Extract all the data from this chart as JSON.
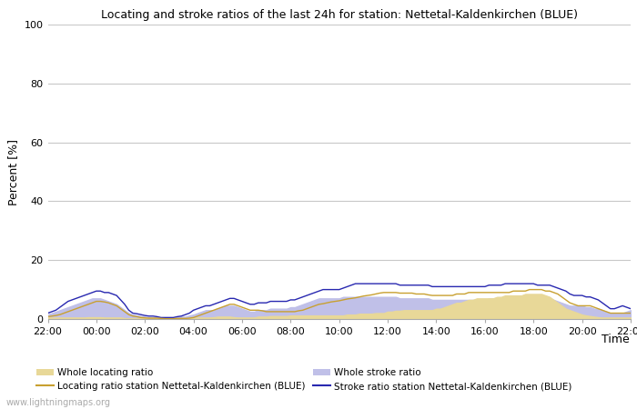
{
  "title": "Locating and stroke ratios of the last 24h for station: Nettetal-Kaldenkirchen (BLUE)",
  "ylabel": "Percent [%]",
  "xlabel": "Time",
  "ylim": [
    0,
    100
  ],
  "yticks": [
    0,
    20,
    40,
    60,
    80,
    100
  ],
  "xtick_labels": [
    "22:00",
    "00:00",
    "02:00",
    "04:00",
    "06:00",
    "08:00",
    "10:00",
    "12:00",
    "14:00",
    "16:00",
    "18:00",
    "20:00",
    "22:00"
  ],
  "watermark": "www.lightningmaps.org",
  "background_color": "#ffffff",
  "plot_bg_color": "#ffffff",
  "grid_color": "#c8c8c8",
  "fill_locating_color": "#e8d898",
  "fill_stroke_color": "#c0c0e8",
  "line_locating_color": "#c8a030",
  "line_stroke_color": "#2828b0",
  "legend_labels": [
    "Whole locating ratio",
    "Locating ratio station Nettetal-Kaldenkirchen (BLUE)",
    "Whole stroke ratio",
    "Stroke ratio station Nettetal-Kaldenkirchen (BLUE)"
  ],
  "n_points": 145,
  "whole_locating": [
    0.5,
    0.5,
    0.5,
    0.5,
    0.5,
    0.5,
    0.5,
    0.5,
    0.5,
    0.5,
    0.6,
    0.6,
    0.6,
    0.6,
    0.5,
    0.5,
    0.5,
    0.5,
    0.5,
    0.3,
    0.2,
    0.2,
    0.2,
    0.2,
    0.2,
    0.2,
    0.2,
    0.2,
    0.1,
    0.1,
    0.1,
    0.1,
    0.2,
    0.2,
    0.2,
    0.3,
    0.4,
    0.5,
    0.5,
    0.5,
    0.5,
    0.6,
    0.8,
    0.8,
    0.8,
    0.8,
    0.6,
    0.5,
    0.5,
    0.5,
    0.5,
    0.5,
    0.8,
    0.8,
    0.8,
    1.0,
    1.0,
    1.0,
    1.0,
    1.0,
    1.2,
    1.2,
    1.2,
    1.2,
    1.2,
    1.2,
    1.2,
    1.2,
    1.2,
    1.2,
    1.2,
    1.2,
    1.2,
    1.2,
    1.5,
    1.5,
    1.5,
    1.8,
    1.8,
    1.8,
    1.8,
    2.0,
    2.0,
    2.0,
    2.5,
    2.5,
    2.8,
    2.8,
    3.0,
    3.0,
    3.0,
    3.0,
    3.0,
    3.0,
    3.0,
    3.0,
    3.5,
    3.5,
    4.0,
    4.5,
    5.0,
    5.5,
    5.5,
    6.0,
    6.5,
    6.5,
    7.0,
    7.0,
    7.0,
    7.0,
    7.0,
    7.5,
    7.5,
    8.0,
    8.0,
    8.0,
    8.0,
    8.0,
    8.5,
    8.5,
    8.5,
    8.5,
    8.5,
    8.0,
    7.5,
    6.5,
    5.5,
    4.5,
    3.5,
    3.0,
    2.5,
    2.0,
    1.5,
    1.2,
    1.0,
    0.8,
    0.6,
    0.5,
    0.5,
    0.5,
    0.5,
    0.5,
    0.5,
    0.5,
    0.5
  ],
  "station_locating": [
    0.8,
    1.0,
    1.2,
    1.5,
    2.0,
    2.5,
    3.0,
    3.5,
    4.0,
    4.5,
    5.0,
    5.5,
    6.0,
    6.0,
    5.8,
    5.5,
    5.0,
    4.5,
    3.5,
    2.5,
    1.5,
    1.0,
    0.8,
    0.5,
    0.4,
    0.3,
    0.3,
    0.3,
    0.2,
    0.1,
    0.1,
    0.1,
    0.2,
    0.2,
    0.2,
    0.3,
    0.5,
    1.0,
    1.5,
    2.0,
    2.5,
    3.0,
    3.5,
    4.0,
    4.5,
    5.0,
    5.0,
    4.5,
    4.0,
    3.5,
    3.0,
    3.0,
    3.0,
    2.8,
    2.5,
    2.5,
    2.5,
    2.5,
    2.5,
    2.5,
    2.5,
    2.5,
    2.8,
    3.0,
    3.5,
    4.0,
    4.5,
    5.0,
    5.2,
    5.5,
    5.8,
    6.0,
    6.2,
    6.5,
    6.8,
    7.0,
    7.2,
    7.5,
    7.8,
    8.0,
    8.2,
    8.5,
    8.8,
    9.0,
    9.0,
    9.0,
    9.0,
    8.8,
    8.8,
    8.8,
    8.8,
    8.5,
    8.5,
    8.5,
    8.2,
    8.0,
    8.0,
    8.0,
    8.0,
    8.0,
    8.0,
    8.5,
    8.5,
    8.5,
    9.0,
    9.0,
    9.0,
    9.0,
    9.0,
    9.0,
    9.0,
    9.0,
    9.0,
    9.0,
    9.0,
    9.5,
    9.5,
    9.5,
    9.5,
    10.0,
    10.0,
    10.0,
    10.0,
    9.5,
    9.5,
    9.0,
    8.5,
    7.5,
    6.5,
    5.5,
    5.0,
    4.5,
    4.5,
    4.5,
    4.5,
    4.0,
    3.5,
    3.0,
    2.5,
    2.0,
    2.0,
    2.0,
    2.0,
    2.0,
    2.0
  ],
  "whole_stroke": [
    1.5,
    2.0,
    2.5,
    3.0,
    3.5,
    4.0,
    4.5,
    5.0,
    5.5,
    6.0,
    6.5,
    7.0,
    7.0,
    7.0,
    6.5,
    6.0,
    5.5,
    5.0,
    4.0,
    3.0,
    2.0,
    1.5,
    1.2,
    1.0,
    0.8,
    0.6,
    0.6,
    0.6,
    0.4,
    0.4,
    0.4,
    0.4,
    0.6,
    0.8,
    0.8,
    1.2,
    1.5,
    2.0,
    2.5,
    3.0,
    3.0,
    3.0,
    3.5,
    4.0,
    4.5,
    4.5,
    4.5,
    4.0,
    3.5,
    3.0,
    2.5,
    2.5,
    3.0,
    3.0,
    3.0,
    3.5,
    3.5,
    3.5,
    3.5,
    3.5,
    4.0,
    4.0,
    4.5,
    5.0,
    5.5,
    6.0,
    6.5,
    7.0,
    7.0,
    7.0,
    7.0,
    7.0,
    7.0,
    7.5,
    7.5,
    7.5,
    7.5,
    7.5,
    7.5,
    7.5,
    7.5,
    7.5,
    7.5,
    7.5,
    7.5,
    7.5,
    7.5,
    7.0,
    7.0,
    7.0,
    7.0,
    7.0,
    7.0,
    7.0,
    7.0,
    6.5,
    6.5,
    6.5,
    6.5,
    6.5,
    6.5,
    6.5,
    6.5,
    6.5,
    6.5,
    6.5,
    6.5,
    6.5,
    6.5,
    7.0,
    7.0,
    7.0,
    7.0,
    7.5,
    7.5,
    7.5,
    7.5,
    7.5,
    7.5,
    7.5,
    7.5,
    7.0,
    7.0,
    7.0,
    7.0,
    6.5,
    6.0,
    5.5,
    5.0,
    4.5,
    4.5,
    4.5,
    4.5,
    4.0,
    4.0,
    3.5,
    3.5,
    3.0,
    2.5,
    2.0,
    2.0,
    2.0,
    2.0,
    2.5,
    3.0
  ],
  "station_stroke": [
    2.0,
    2.5,
    3.0,
    4.0,
    5.0,
    6.0,
    6.5,
    7.0,
    7.5,
    8.0,
    8.5,
    9.0,
    9.5,
    9.5,
    9.0,
    9.0,
    8.5,
    8.0,
    6.5,
    5.0,
    3.0,
    2.0,
    1.8,
    1.5,
    1.2,
    1.0,
    1.0,
    0.8,
    0.5,
    0.5,
    0.5,
    0.5,
    0.8,
    1.0,
    1.5,
    2.0,
    3.0,
    3.5,
    4.0,
    4.5,
    4.5,
    5.0,
    5.5,
    6.0,
    6.5,
    7.0,
    7.0,
    6.5,
    6.0,
    5.5,
    5.0,
    5.0,
    5.5,
    5.5,
    5.5,
    6.0,
    6.0,
    6.0,
    6.0,
    6.0,
    6.5,
    6.5,
    7.0,
    7.5,
    8.0,
    8.5,
    9.0,
    9.5,
    10.0,
    10.0,
    10.0,
    10.0,
    10.0,
    10.5,
    11.0,
    11.5,
    12.0,
    12.0,
    12.0,
    12.0,
    12.0,
    12.0,
    12.0,
    12.0,
    12.0,
    12.0,
    12.0,
    11.5,
    11.5,
    11.5,
    11.5,
    11.5,
    11.5,
    11.5,
    11.5,
    11.0,
    11.0,
    11.0,
    11.0,
    11.0,
    11.0,
    11.0,
    11.0,
    11.0,
    11.0,
    11.0,
    11.0,
    11.0,
    11.0,
    11.5,
    11.5,
    11.5,
    11.5,
    12.0,
    12.0,
    12.0,
    12.0,
    12.0,
    12.0,
    12.0,
    12.0,
    11.5,
    11.5,
    11.5,
    11.5,
    11.0,
    10.5,
    10.0,
    9.5,
    8.5,
    8.0,
    8.0,
    8.0,
    7.5,
    7.5,
    7.0,
    6.5,
    5.5,
    4.5,
    3.5,
    3.5,
    4.0,
    4.5,
    4.0,
    3.5
  ]
}
